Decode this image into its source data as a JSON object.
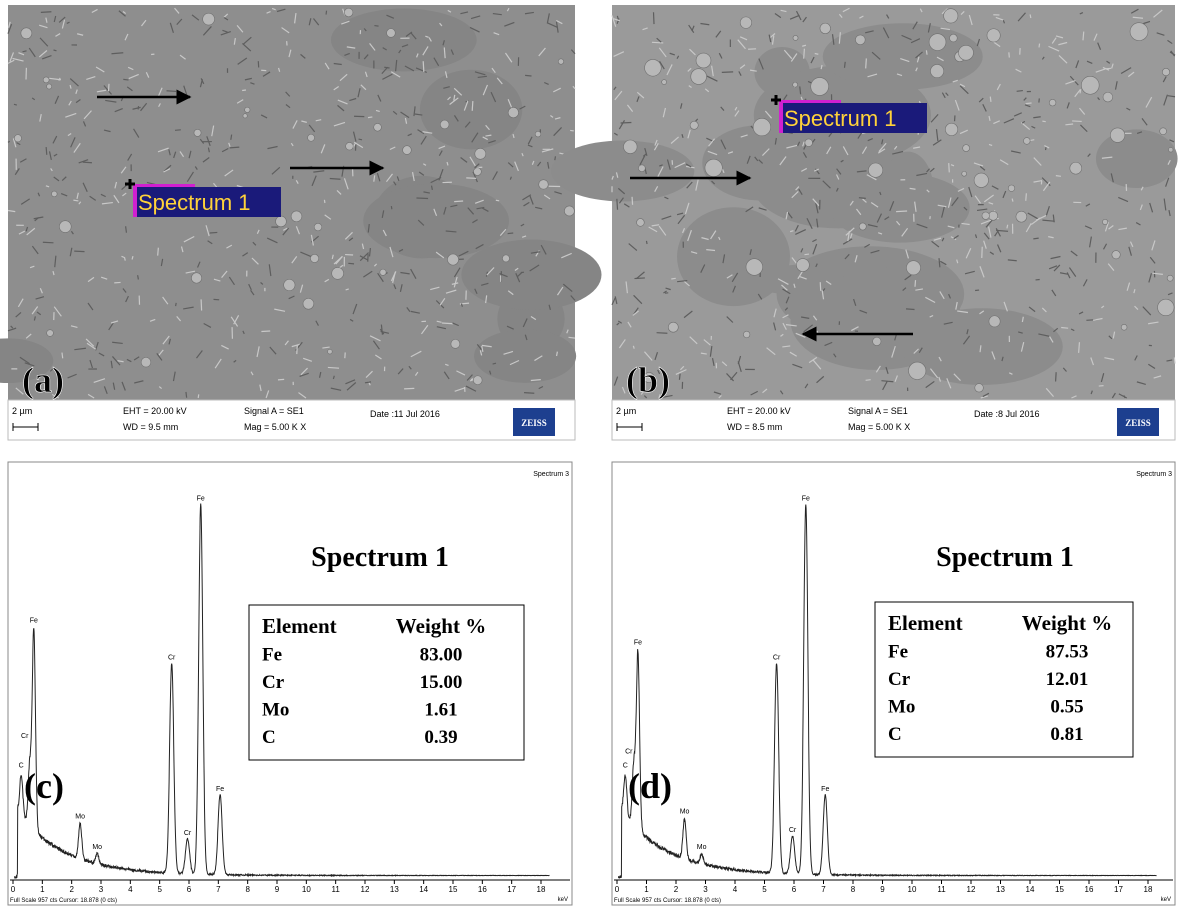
{
  "sem_panels": [
    {
      "label": "(a)",
      "spectrum_label": "Spectrum 1",
      "scale_bar": "2 µm",
      "eht": "EHT = 20.00 kV",
      "wd": "WD = 9.5 mm",
      "signal": "Signal A = SE1",
      "mag": "Mag =  5.00 K X",
      "date": "Date :11 Jul 2016",
      "brand": "ZEISS"
    },
    {
      "label": "(b)",
      "spectrum_label": "Spectrum 1",
      "scale_bar": "2 µm",
      "eht": "EHT = 20.00 kV",
      "wd": "WD = 8.5 mm",
      "signal": "Signal A = SE1",
      "mag": "Mag =  5.00 K X",
      "date": "Date :8 Jul 2016",
      "brand": "ZEISS"
    }
  ],
  "eds_panels": [
    {
      "label": "(c)",
      "corner": "Spectrum 3",
      "title": "Spectrum 1",
      "table": {
        "header": [
          "Element",
          "Weight %"
        ],
        "rows": [
          [
            "Fe",
            "83.00"
          ],
          [
            "Cr",
            "15.00"
          ],
          [
            "Mo",
            "1.61"
          ],
          [
            "C",
            "0.39"
          ]
        ]
      },
      "peak_labels": [
        "C",
        "Fe",
        "Cr",
        "Mo",
        "Mo",
        "Cr",
        "Cr",
        "Fe",
        "Fe"
      ],
      "x_ticks": [
        0,
        1,
        2,
        3,
        4,
        5,
        6,
        7,
        8,
        9,
        10,
        11,
        12,
        13,
        14,
        15,
        16,
        17,
        18
      ],
      "x_unit": "keV",
      "footer": "Full Scale 957 cts Cursor: 18.878 (0 cts)"
    },
    {
      "label": "(d)",
      "corner": "Spectrum 3",
      "title": "Spectrum 1",
      "table": {
        "header": [
          "Element",
          "Weight %"
        ],
        "rows": [
          [
            "Fe",
            "87.53"
          ],
          [
            "Cr",
            "12.01"
          ],
          [
            "Mo",
            "0.55"
          ],
          [
            "C",
            "0.81"
          ]
        ]
      },
      "peak_labels": [
        "C",
        "Fe",
        "Cr",
        "Mo",
        "Mo",
        "Cr",
        "Cr",
        "Fe",
        "Fe"
      ],
      "x_ticks": [
        0,
        1,
        2,
        3,
        4,
        5,
        6,
        7,
        8,
        9,
        10,
        11,
        12,
        13,
        14,
        15,
        16,
        17,
        18
      ],
      "x_unit": "keV",
      "footer": "Full Scale 957 cts Cursor: 18.878 (0 cts)"
    }
  ]
}
